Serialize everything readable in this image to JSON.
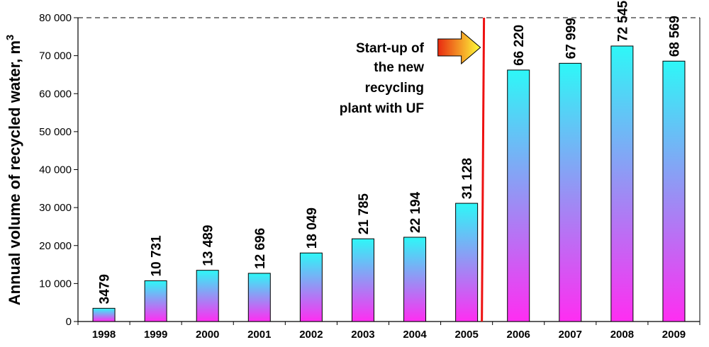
{
  "chart_data": {
    "type": "bar",
    "title": "",
    "xlabel": "",
    "ylabel": "Annual volume of recycled water, m",
    "ylabel_superscript": "3",
    "categories": [
      "1998",
      "1999",
      "2000",
      "2001",
      "2002",
      "2003",
      "2004",
      "2005",
      "2006",
      "2007",
      "2008",
      "2009"
    ],
    "values": [
      3479,
      10731,
      13489,
      12696,
      18049,
      21785,
      22194,
      31128,
      66220,
      67999,
      72545,
      68569
    ],
    "data_labels": [
      "3479",
      "10 731",
      "13 489",
      "12 696",
      "18 049",
      "21 785",
      "22 194",
      "31 128",
      "66 220",
      "67 999",
      "72 545",
      "68 569"
    ],
    "ylim": [
      0,
      80000
    ],
    "yticks": [
      0,
      10000,
      20000,
      30000,
      40000,
      50000,
      60000,
      70000,
      80000
    ],
    "ytick_labels": [
      "0",
      "10 000",
      "20 000",
      "30 000",
      "40 000",
      "50 000",
      "60 000",
      "70 000",
      "80 000"
    ],
    "grid": "dashed top border only",
    "bar_gradient": {
      "top": "#2ef7f7",
      "bottom": "#ff2df2"
    },
    "annotation": {
      "lines": [
        "Start-up of",
        "the new",
        "recycling",
        "plant with UF"
      ],
      "marker_between": [
        "2005",
        "2006"
      ],
      "marker_color": "#ee1111",
      "arrow_colors": [
        "#e82a10",
        "#ffff3a"
      ]
    }
  }
}
